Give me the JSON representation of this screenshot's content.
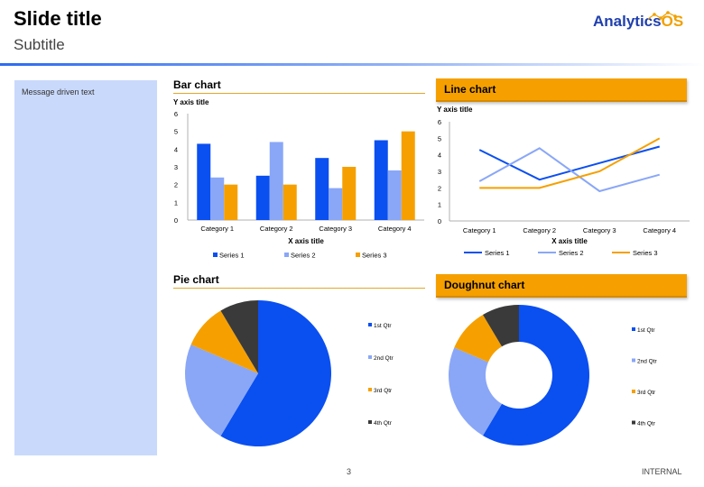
{
  "slide": {
    "title": "Slide title",
    "subtitle": "Subtitle",
    "message": "Message driven text",
    "page_number": "3",
    "classification": "INTERNAL"
  },
  "logo": {
    "main": "Analytics",
    "accent": "OS"
  },
  "colors": {
    "series1": "#0a4ff0",
    "series2": "#8aa7f7",
    "series3": "#f5a000",
    "series4": "#3a3a3a",
    "accent": "#f5a000"
  },
  "sections": {
    "bar": "Bar chart",
    "line": "Line chart",
    "pie": "Pie chart",
    "doughnut": "Doughnut chart"
  },
  "chart_data": [
    {
      "type": "bar",
      "title": "Bar chart",
      "xlabel": "X axis title",
      "ylabel": "Y axis title",
      "ylim": [
        0,
        6
      ],
      "yticks": [
        0,
        1,
        2,
        3,
        4,
        5,
        6
      ],
      "categories": [
        "Category 1",
        "Category 2",
        "Category 3",
        "Category 4"
      ],
      "series": [
        {
          "name": "Series 1",
          "values": [
            4.3,
            2.5,
            3.5,
            4.5
          ]
        },
        {
          "name": "Series 2",
          "values": [
            2.4,
            4.4,
            1.8,
            2.8
          ]
        },
        {
          "name": "Series 3",
          "values": [
            2,
            2,
            3,
            5
          ]
        }
      ],
      "legend": "bottom"
    },
    {
      "type": "line",
      "title": "Line chart",
      "xlabel": "X axis title",
      "ylabel": "Y axis title",
      "ylim": [
        0,
        6
      ],
      "yticks": [
        0,
        1,
        2,
        3,
        4,
        5,
        6
      ],
      "categories": [
        "Category 1",
        "Category 2",
        "Category 3",
        "Category 4"
      ],
      "series": [
        {
          "name": "Series 1",
          "values": [
            4.3,
            2.5,
            3.5,
            4.5
          ]
        },
        {
          "name": "Series 2",
          "values": [
            2.4,
            4.4,
            1.8,
            2.8
          ]
        },
        {
          "name": "Series 3",
          "values": [
            2,
            2,
            3,
            5
          ]
        }
      ],
      "legend": "bottom"
    },
    {
      "type": "pie",
      "title": "Pie chart",
      "labels": [
        "1st Qtr",
        "2nd Qtr",
        "3rd Qtr",
        "4th Qtr"
      ],
      "values": [
        8.2,
        3.2,
        1.4,
        1.2
      ],
      "legend": "right"
    },
    {
      "type": "pie",
      "variant": "doughnut",
      "title": "Doughnut chart",
      "labels": [
        "1st Qtr",
        "2nd Qtr",
        "3rd Qtr",
        "4th Qtr"
      ],
      "values": [
        8.2,
        3.2,
        1.4,
        1.2
      ],
      "legend": "right"
    }
  ]
}
